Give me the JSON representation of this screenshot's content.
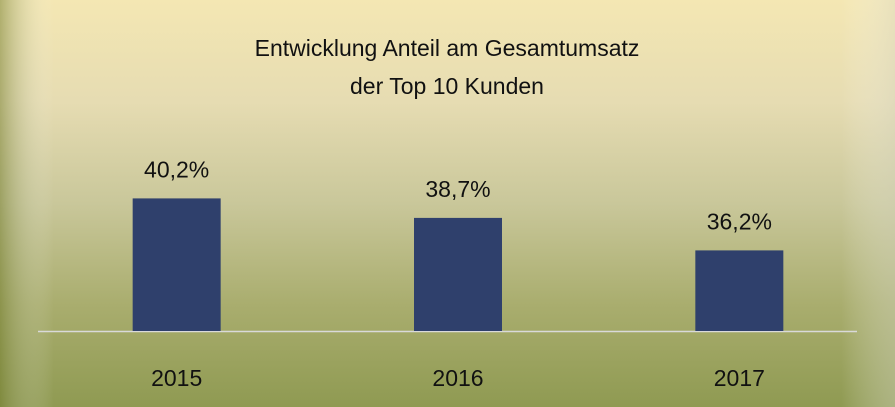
{
  "chart_data": {
    "type": "bar",
    "title": [
      "Entwicklung Anteil am Gesamtumsatz",
      "der Top 10 Kunden"
    ],
    "categories": [
      "2015",
      "2016",
      "2017"
    ],
    "values": [
      40.2,
      38.7,
      36.2
    ],
    "value_labels": [
      "40,2%",
      "38,7%",
      "36,2%"
    ],
    "color": "#2f406c",
    "ylim": [
      30,
      45
    ]
  }
}
